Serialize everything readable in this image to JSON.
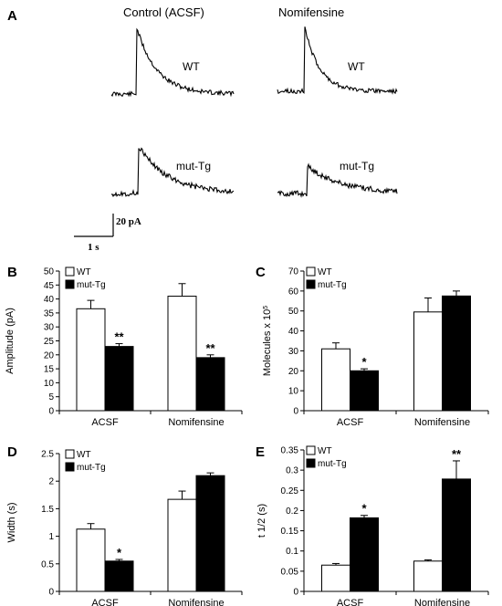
{
  "panel_a": {
    "letter": "A",
    "conditions": [
      "Control (ACSF)",
      "Nomifensine"
    ],
    "genotypes": [
      "WT",
      "mut-Tg"
    ],
    "scale_y": "20 pA",
    "scale_x": "1 s"
  },
  "chart_data": [
    {
      "id": "B",
      "letter": "B",
      "type": "bar",
      "categories": [
        "ACSF",
        "Nomifensine"
      ],
      "series": [
        {
          "name": "WT",
          "fill": "#ffffff",
          "values": [
            36.5,
            41
          ],
          "errors": [
            3,
            4.5
          ]
        },
        {
          "name": "mut-Tg",
          "fill": "#000000",
          "values": [
            23,
            19
          ],
          "errors": [
            1,
            1
          ]
        }
      ],
      "significance": [
        [
          "",
          "**"
        ],
        [
          "",
          "**"
        ]
      ],
      "ylabel": "Amplitude (pA)",
      "ylim": [
        0,
        50
      ],
      "yticks": [
        0,
        5,
        10,
        15,
        20,
        25,
        30,
        35,
        40,
        45,
        50
      ],
      "ytick_labels": [
        "0",
        "5",
        "10",
        "15",
        "20",
        "25",
        "30",
        "35",
        "40",
        "45",
        "50"
      ],
      "legend": "top-left"
    },
    {
      "id": "C",
      "letter": "C",
      "type": "bar",
      "categories": [
        "ACSF",
        "Nomifensine"
      ],
      "series": [
        {
          "name": "WT",
          "fill": "#ffffff",
          "values": [
            31,
            49.5
          ],
          "errors": [
            3,
            7
          ]
        },
        {
          "name": "mut-Tg",
          "fill": "#000000",
          "values": [
            20,
            57.5
          ],
          "errors": [
            1,
            2.5
          ]
        }
      ],
      "significance": [
        [
          "",
          "*"
        ],
        [
          "",
          ""
        ]
      ],
      "ylabel": "Molecules x 10",
      "ylabel_sup": "5",
      "ylim": [
        0,
        70
      ],
      "yticks": [
        0,
        10,
        20,
        30,
        40,
        50,
        60,
        70
      ],
      "ytick_labels": [
        "0",
        "10",
        "20",
        "30",
        "40",
        "50",
        "60",
        "70"
      ],
      "legend": "top-left"
    },
    {
      "id": "D",
      "letter": "D",
      "type": "bar",
      "categories": [
        "ACSF",
        "Nomifensine"
      ],
      "series": [
        {
          "name": "WT",
          "fill": "#ffffff",
          "values": [
            1.13,
            1.67
          ],
          "errors": [
            0.1,
            0.15
          ]
        },
        {
          "name": "mut-Tg",
          "fill": "#000000",
          "values": [
            0.55,
            2.1
          ],
          "errors": [
            0.03,
            0.05
          ]
        }
      ],
      "significance": [
        [
          "",
          "*"
        ],
        [
          "",
          ""
        ]
      ],
      "ylabel": "Width (s)",
      "ylim": [
        0,
        2.5
      ],
      "yticks": [
        0,
        0.5,
        1,
        1.5,
        2,
        2.5
      ],
      "ytick_labels": [
        "0",
        "0.5",
        "1",
        "1.5",
        "2",
        "2.5"
      ],
      "legend": "top-left"
    },
    {
      "id": "E",
      "letter": "E",
      "type": "bar",
      "categories": [
        "ACSF",
        "Nomifensine"
      ],
      "series": [
        {
          "name": "WT",
          "fill": "#ffffff",
          "values": [
            0.065,
            0.075
          ],
          "errors": [
            0.004,
            0.003
          ]
        },
        {
          "name": "mut-Tg",
          "fill": "#000000",
          "values": [
            0.182,
            0.278
          ],
          "errors": [
            0.006,
            0.045
          ]
        }
      ],
      "significance": [
        [
          "",
          "*"
        ],
        [
          "",
          "**"
        ]
      ],
      "ylabel": "t 1/2 (s)",
      "ylim": [
        0,
        0.35
      ],
      "yticks": [
        0,
        0.05,
        0.1,
        0.15,
        0.2,
        0.25,
        0.3,
        0.35
      ],
      "ytick_labels": [
        "0",
        "0.05",
        "0.1",
        "0.15",
        "0.2",
        "0.25",
        "0.3",
        "0.35"
      ],
      "legend": "top-left"
    }
  ]
}
